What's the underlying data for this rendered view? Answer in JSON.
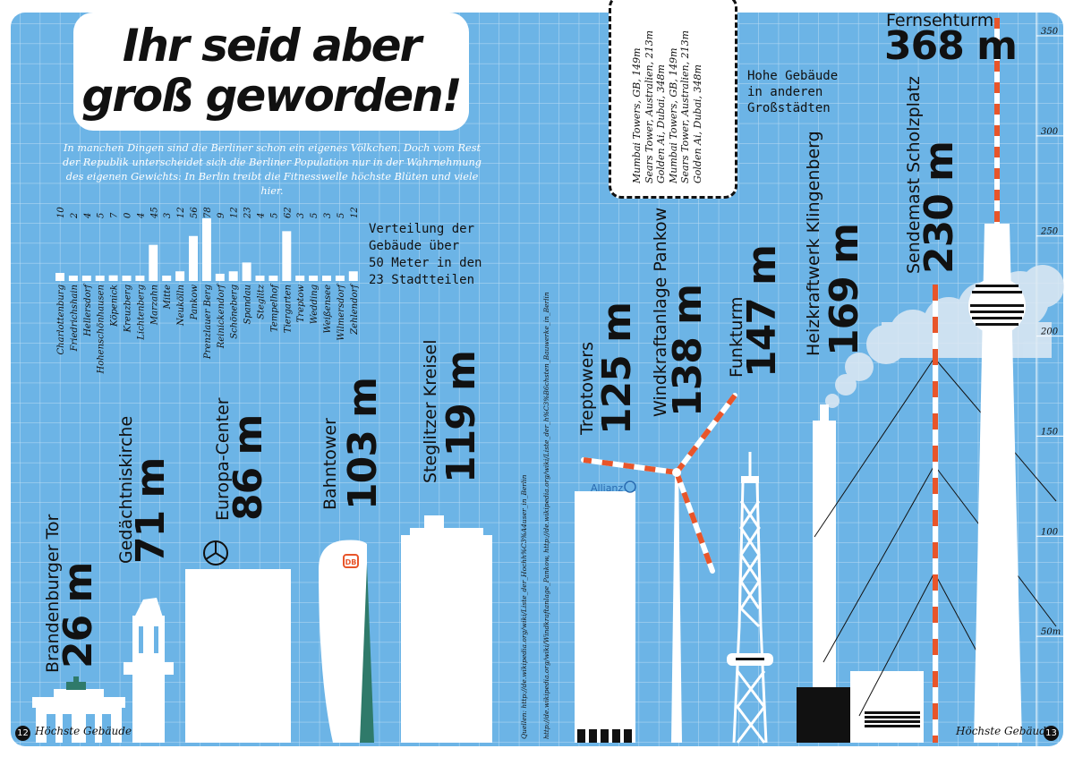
{
  "title": {
    "line1": "Ihr seid aber",
    "line2": "groß geworden!"
  },
  "intro": "In manchen Dingen sind die Berliner schon ein eigenes Völkchen. Doch vom Rest der Republik unterscheidet sich die Berliner Population nur in der Wahrnehmung des eigenen Gewichts: In Berlin treibt die Fitnesswelle höchste Blüten und viele hier.",
  "chart_title": {
    "line1": "Verteilung der",
    "line2": "Gebäude über",
    "line3": "50 Meter in den",
    "line4": "23 Stadtteilen"
  },
  "other_cities": {
    "heading_line1": "Hohe Gebäude",
    "heading_line2": "in anderen",
    "heading_line3": "Großstädten",
    "items": [
      "Mumbai Towers, GB, 149m",
      "Sears Tower, Australien, 213m",
      "Golden Ai, Dubai, 348m",
      "Mumbai Towers, GB, 149m",
      "Sears Tower, Australien, 213m",
      "Golden Ai, Dubai, 348m"
    ]
  },
  "sources": {
    "line1": "Quellen: http://de.wikipedia.org/wiki/Liste_der_Hochh%C3%A4user_in_Berlin",
    "line2": "http://de.wikipedia.org/wiki/Windkraftanlage_Pankow, http://de.wikipedia.org/wiki/Liste_der_h%C3%B6chsten_Bauwerke_in_Berlin"
  },
  "logos": {
    "allianz": "Allianz",
    "db": "DB"
  },
  "footer": {
    "left_page": "12",
    "left_label": "Höchste Gebäude",
    "right_page": "13",
    "right_label": "Höchste Gebäude"
  },
  "colors": {
    "background": "#6cb4e6",
    "grid": "#ffffff",
    "ink": "#111111",
    "accent": "#e8552a",
    "glass": "#2f7a6a"
  },
  "chart_data": [
    {
      "type": "bar",
      "categories": [
        "Charlottenburg",
        "Friedrichshain",
        "Hellersdorf",
        "Hohenschönhausen",
        "Köpenick",
        "Kreuzberg",
        "Lichtenberg",
        "Marzahn",
        "Mitte",
        "Neukölln",
        "Pankow",
        "Prenzlauer Berg",
        "Reinickendorf",
        "Schöneberg",
        "Spandau",
        "Steglitz",
        "Tempelhof",
        "Tiergarten",
        "Treptow",
        "Wedding",
        "Weißensee",
        "Wilmersdorf",
        "Zehlendorf"
      ],
      "values": [
        10,
        2,
        4,
        5,
        7,
        0,
        4,
        45,
        3,
        12,
        56,
        78,
        9,
        12,
        23,
        4,
        5,
        62,
        3,
        5,
        3,
        5,
        12
      ],
      "title": "Verteilung der Gebäude über 50 Meter in den 23 Stadtteilen"
    },
    {
      "type": "bar",
      "categories": [
        "Brandenburger Tor",
        "Gedächtniskirche",
        "Europa-Center",
        "Bahntower",
        "Steglitzer Kreisel",
        "Treptowers",
        "Windkraftanlage Pankow",
        "Funkturm",
        "Heizkraftwerk Klingenberg",
        "Sendemast Scholzplatz",
        "Fernsehturm"
      ],
      "values": [
        26,
        71,
        86,
        103,
        119,
        125,
        138,
        147,
        169,
        230,
        368
      ],
      "value_labels": [
        "26 m",
        "71 m",
        "86 m",
        "103 m",
        "119 m",
        "125 m",
        "138 m",
        "147 m",
        "169 m",
        "230 m",
        "368 m"
      ],
      "unit": "m",
      "y_ticks": [
        50,
        100,
        150,
        200,
        250,
        300,
        350
      ],
      "y_tick_labels": [
        "50m",
        "100",
        "150",
        "200",
        "250",
        "300",
        "350"
      ],
      "ylim": [
        0,
        368
      ]
    }
  ]
}
